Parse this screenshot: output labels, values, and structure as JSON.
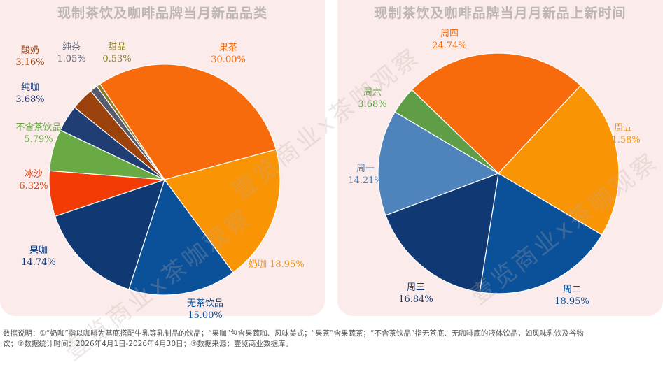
{
  "chart_data": [
    {
      "type": "pie",
      "title": "现制茶饮及咖啡品牌当月新品品类",
      "slices": [
        {
          "name": "果茶",
          "value": 30.0,
          "label": "30.00%",
          "color": "#f76b0c"
        },
        {
          "name": "奶咖",
          "value": 18.95,
          "label": "18.95%",
          "color": "#f99405"
        },
        {
          "name": "无茶饮品",
          "value": 15.0,
          "label": "15.00%",
          "color": "#0a5199"
        },
        {
          "name": "果咖",
          "value": 14.74,
          "label": "14.74%",
          "color": "#103873"
        },
        {
          "name": "冰沙",
          "value": 6.32,
          "label": "6.32%",
          "color": "#f23b05"
        },
        {
          "name": "不含茶饮品",
          "value": 5.79,
          "label": "5.79%",
          "color": "#6aaa45"
        },
        {
          "name": "纯咖",
          "value": 3.68,
          "label": "3.68%",
          "color": "#203e73"
        },
        {
          "name": "酸奶",
          "value": 3.16,
          "label": "3.16%",
          "color": "#9c420d"
        },
        {
          "name": "纯茶",
          "value": 1.05,
          "label": "1.05%",
          "color": "#555c6e"
        },
        {
          "name": "甜品",
          "value": 0.53,
          "label": "0.53%",
          "color": "#8a7a25"
        }
      ]
    },
    {
      "type": "pie",
      "title": "现制茶饮及咖啡品牌当月月新品上新时间",
      "slices": [
        {
          "name": "周四",
          "value": 24.74,
          "label": "24.74%",
          "color": "#f76b0c"
        },
        {
          "name": "周五",
          "value": 21.58,
          "label": "21.58%",
          "color": "#f99405"
        },
        {
          "name": "周二",
          "value": 18.95,
          "label": "18.95%",
          "color": "#0a5199"
        },
        {
          "name": "周三",
          "value": 16.84,
          "label": "16.84%",
          "color": "#103873"
        },
        {
          "name": "周一",
          "value": 14.21,
          "label": "14.21%",
          "color": "#4f83bb"
        },
        {
          "name": "周六",
          "value": 3.68,
          "label": "3.68%",
          "color": "#5f9e47"
        }
      ]
    }
  ],
  "watermark": "壹览商业x茶咖观察",
  "footnote": {
    "line1": "数据说明：①“奶咖”指以咖啡为基底搭配牛乳等乳制品的饮品；“果咖”包含果蔬咖、风味美式；“果茶”含果蔬茶；“不含茶饮品”指无茶底、无咖啡底的液体饮品，如风味乳饮及谷物",
    "line2": "饮；②数据统计时间：2026年4月1日-2026年4月30日；③数据来源：壹览商业数据库。"
  }
}
